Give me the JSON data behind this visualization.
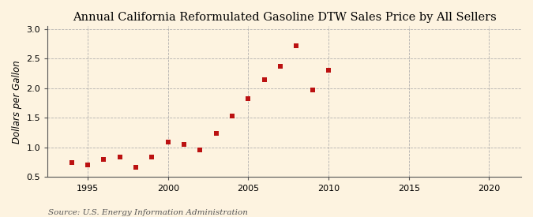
{
  "title": "Annual California Reformulated Gasoline DTW Sales Price by All Sellers",
  "ylabel": "Dollars per Gallon",
  "source": "Source: U.S. Energy Information Administration",
  "years": [
    1994,
    1995,
    1996,
    1997,
    1998,
    1999,
    2000,
    2001,
    2002,
    2003,
    2004,
    2005,
    2006,
    2007,
    2008,
    2009,
    2010
  ],
  "values": [
    0.75,
    0.7,
    0.8,
    0.84,
    0.67,
    0.84,
    1.09,
    1.05,
    0.96,
    1.24,
    1.53,
    1.83,
    2.14,
    2.37,
    2.71,
    1.97,
    2.3
  ],
  "marker_color": "#bb1111",
  "marker_size": 5,
  "background_color": "#fdf3e0",
  "grid_color": "#aaaaaa",
  "xlim": [
    1992.5,
    2022
  ],
  "ylim": [
    0.5,
    3.05
  ],
  "xticks": [
    1995,
    2000,
    2005,
    2010,
    2015,
    2020
  ],
  "yticks": [
    0.5,
    1.0,
    1.5,
    2.0,
    2.5,
    3.0
  ],
  "title_fontsize": 10.5,
  "axis_label_fontsize": 8.5,
  "tick_fontsize": 8,
  "source_fontsize": 7.5
}
